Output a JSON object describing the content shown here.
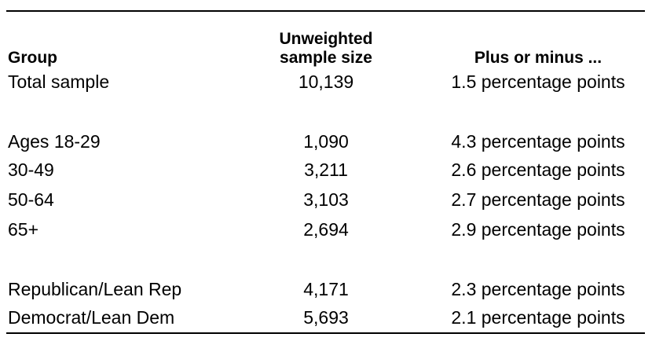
{
  "table": {
    "headers": {
      "group": "Group",
      "sample_size": "Unweighted\nsample size",
      "margin": "Plus or minus ..."
    },
    "rows": [
      {
        "group": "Total sample",
        "sample_size": "10,139",
        "margin": "1.5 percentage points"
      },
      {
        "group": "Ages 18-29",
        "sample_size": "1,090",
        "margin": "4.3 percentage points"
      },
      {
        "group": "30-49",
        "sample_size": "3,211",
        "margin": "2.6 percentage points"
      },
      {
        "group": "50-64",
        "sample_size": "3,103",
        "margin": "2.7 percentage points"
      },
      {
        "group": "65+",
        "sample_size": "2,694",
        "margin": "2.9 percentage points"
      },
      {
        "group": "Republican/Lean Rep",
        "sample_size": "4,171",
        "margin": "2.3 percentage points"
      },
      {
        "group": "Democrat/Lean Dem",
        "sample_size": "5,693",
        "margin": "2.1 percentage points"
      }
    ]
  }
}
